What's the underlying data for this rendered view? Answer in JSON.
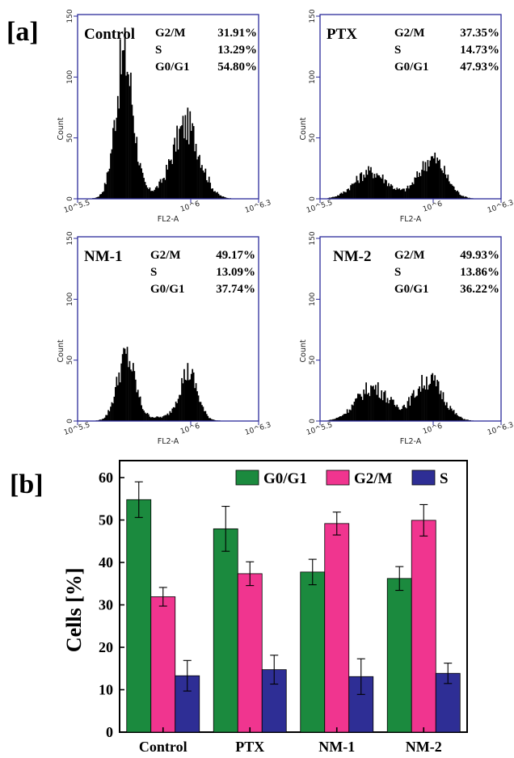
{
  "panel_labels": {
    "a": "[a]",
    "b": "[b]"
  },
  "histograms": {
    "y_ticks": [
      "0",
      "50",
      "100",
      "150"
    ],
    "x_ticks": [
      "10^5.5",
      "10^6",
      "10^6.3"
    ],
    "y_axis_label": "Count",
    "x_axis_label": "FL2-A",
    "stat_labels": [
      "G2/M",
      "S",
      "G0/G1"
    ],
    "panels": [
      {
        "name": "Control",
        "values": [
          "31.91%",
          "13.29%",
          "54.80%"
        ]
      },
      {
        "name": "PTX",
        "values": [
          "37.35%",
          "14.73%",
          "47.93%"
        ]
      },
      {
        "name": "NM-1",
        "values": [
          "49.17%",
          "13.09%",
          "37.74%"
        ]
      },
      {
        "name": "NM-2",
        "values": [
          "49.93%",
          "13.86%",
          "36.22%"
        ]
      }
    ]
  },
  "chart_data": {
    "type": "bar",
    "categories": [
      "Control",
      "PTX",
      "NM-1",
      "NM-2"
    ],
    "series": [
      {
        "name": "G0/G1",
        "color": "#1b8a3e",
        "values": [
          54.8,
          47.93,
          37.74,
          36.22
        ],
        "errors": [
          4.2,
          5.3,
          3.0,
          2.8
        ]
      },
      {
        "name": "G2/M",
        "color": "#f0358f",
        "values": [
          31.91,
          37.35,
          49.17,
          49.93
        ],
        "errors": [
          2.2,
          2.8,
          2.7,
          3.7
        ]
      },
      {
        "name": "S",
        "color": "#2e2e95",
        "values": [
          13.29,
          14.73,
          13.09,
          13.86
        ],
        "errors": [
          3.6,
          3.4,
          4.2,
          2.4
        ]
      }
    ],
    "ylabel": "Cells [%]",
    "xlabel": "",
    "ylim": [
      0,
      64
    ],
    "yticks": [
      0,
      10,
      20,
      30,
      40,
      50,
      60
    ],
    "legend_position": "top-right"
  }
}
